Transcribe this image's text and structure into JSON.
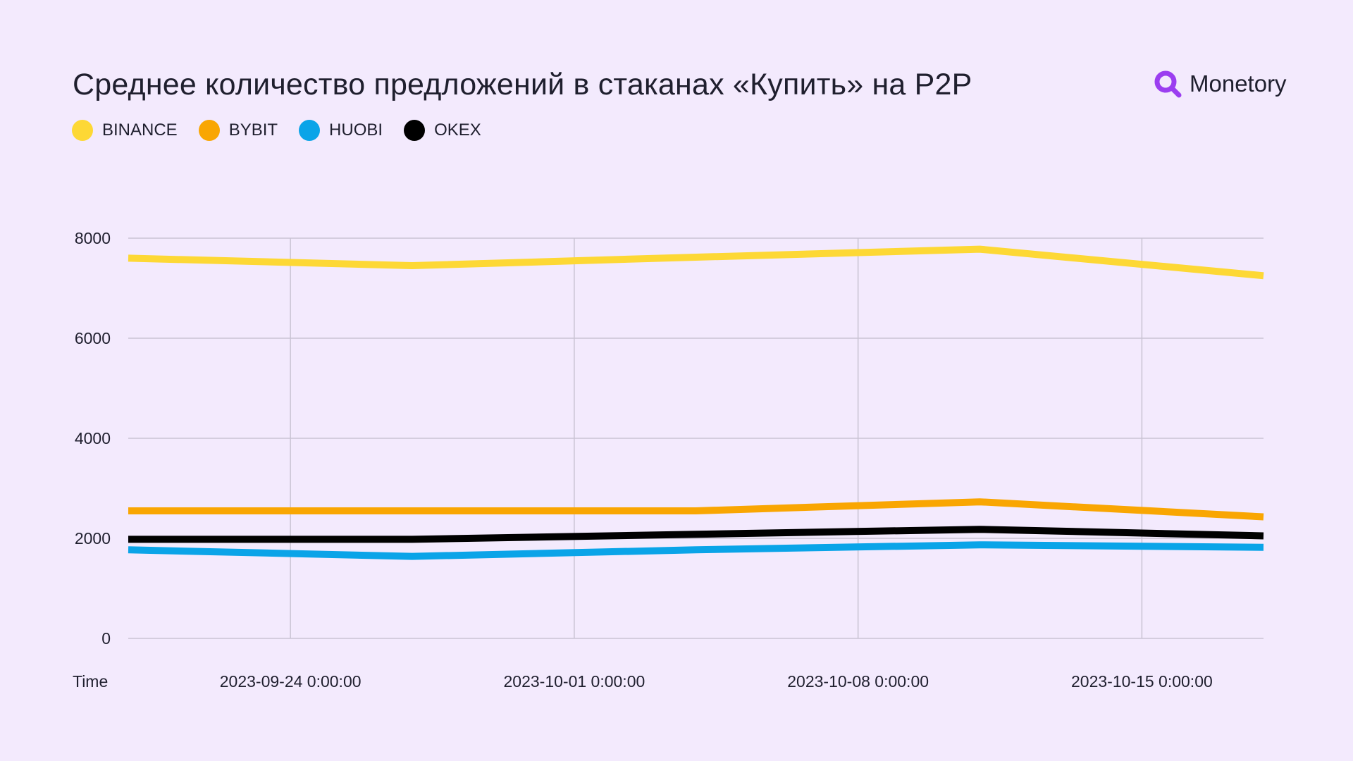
{
  "header": {
    "title": "Среднее количество предложений в стаканах «Купить» на P2P",
    "logo_text": "Monetory"
  },
  "colors": {
    "background": "#f3eafd",
    "grid": "#c9c3d3",
    "logo_accent": "#9b3ef0"
  },
  "chart_data": {
    "type": "line",
    "xlabel": "Time",
    "ylabel": "",
    "ylim": [
      0,
      8000
    ],
    "yticks": [
      0,
      2000,
      4000,
      6000,
      8000
    ],
    "x": [
      "2023-09-20",
      "2023-09-27",
      "2023-10-04",
      "2023-10-11",
      "2023-10-18"
    ],
    "xlim": [
      "2023-09-20",
      "2023-10-18"
    ],
    "xticks": [
      {
        "date": "2023-09-24",
        "label": "2023-09-24 0:00:00"
      },
      {
        "date": "2023-10-01",
        "label": "2023-10-01 0:00:00"
      },
      {
        "date": "2023-10-08",
        "label": "2023-10-08 0:00:00"
      },
      {
        "date": "2023-10-15",
        "label": "2023-10-15 0:00:00"
      }
    ],
    "grid": true,
    "legend_position": "top-left",
    "series": [
      {
        "name": "BINANCE",
        "color": "#fdd835",
        "values": [
          7600,
          7450,
          7620,
          7780,
          7250
        ]
      },
      {
        "name": "BYBIT",
        "color": "#f9a602",
        "values": [
          2550,
          2550,
          2550,
          2730,
          2430
        ]
      },
      {
        "name": "HUOBI",
        "color": "#0aa4e8",
        "values": [
          1770,
          1640,
          1770,
          1870,
          1820
        ]
      },
      {
        "name": "OKEX",
        "color": "#000000",
        "values": [
          1980,
          1980,
          2080,
          2180,
          2050
        ]
      }
    ]
  }
}
